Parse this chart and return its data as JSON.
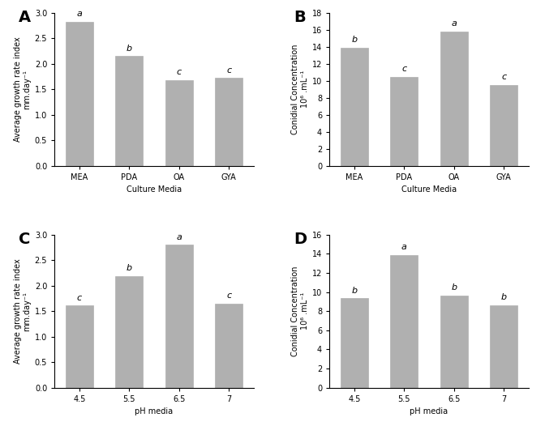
{
  "panel_A": {
    "label": "A",
    "categories": [
      "MEA",
      "PDA",
      "OA",
      "GYA"
    ],
    "values": [
      2.82,
      2.15,
      1.68,
      1.72
    ],
    "letters": [
      "a",
      "b",
      "c",
      "c"
    ],
    "ylabel": "Average growth rate index\nmm.day⁻¹",
    "xlabel": "Culture Media",
    "ylim": [
      0,
      3.0
    ],
    "yticks": [
      0.0,
      0.5,
      1.0,
      1.5,
      2.0,
      2.5,
      3.0
    ]
  },
  "panel_B": {
    "label": "B",
    "categories": [
      "MEA",
      "PDA",
      "OA",
      "GYA"
    ],
    "values": [
      13.9,
      10.5,
      15.8,
      9.5
    ],
    "letters": [
      "b",
      "c",
      "a",
      "c"
    ],
    "ylabel": "Conidial Concentration\n10⁶ .mL⁻¹",
    "xlabel": "Culture Media",
    "ylim": [
      0,
      18
    ],
    "yticks": [
      0,
      2,
      4,
      6,
      8,
      10,
      12,
      14,
      16,
      18
    ]
  },
  "panel_C": {
    "label": "C",
    "categories": [
      "4.5",
      "5.5",
      "6.5",
      "7"
    ],
    "values": [
      1.61,
      2.19,
      2.8,
      1.65
    ],
    "letters": [
      "c",
      "b",
      "a",
      "c"
    ],
    "ylabel": "Average growth rate index\nmm.day⁻¹",
    "xlabel": "pH media",
    "ylim": [
      0,
      3.0
    ],
    "yticks": [
      0.0,
      0.5,
      1.0,
      1.5,
      2.0,
      2.5,
      3.0
    ]
  },
  "panel_D": {
    "label": "D",
    "categories": [
      "4.5",
      "5.5",
      "6.5",
      "7"
    ],
    "values": [
      9.35,
      13.9,
      9.65,
      8.65
    ],
    "letters": [
      "b",
      "a",
      "b",
      "b"
    ],
    "ylabel": "Conidial Concentration\n10⁶ .mL⁻¹",
    "xlabel": "pH media",
    "ylim": [
      0,
      16
    ],
    "yticks": [
      0,
      2,
      4,
      6,
      8,
      10,
      12,
      14,
      16
    ]
  },
  "bar_color": "#b0b0b0",
  "bar_edgecolor": "#b0b0b0",
  "bg_color": "#f5f5f5",
  "letter_fontsize": 8,
  "axis_label_fontsize": 7,
  "tick_fontsize": 7,
  "panel_label_fontsize": 14
}
